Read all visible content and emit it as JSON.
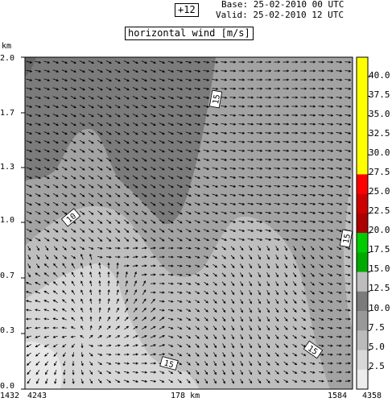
{
  "header": {
    "forecast_step": "+12",
    "base_label": "Base:",
    "base_value": "25-02-2010  00 UTC",
    "valid_label": "Valid:",
    "valid_value": "25-02-2010  12 UTC"
  },
  "chart_data": {
    "type": "heatmap",
    "title": "horizontal wind [m/s]",
    "ylabel": "km",
    "ylim": [
      0.0,
      2.0
    ],
    "yticks": [
      "2.0",
      "1.7",
      "1.3",
      "1.0",
      "0.7",
      "0.3",
      "0.0"
    ],
    "bottom_labels": [
      "1432",
      "4243",
      "178 km",
      "1584",
      "4358"
    ],
    "colorbar": {
      "levels": [
        "40.0",
        "37.5",
        "35.0",
        "32.5",
        "30.0",
        "27.5",
        "25.0",
        "22.5",
        "20.0",
        "17.5",
        "15.0",
        "12.5",
        "10.0",
        "7.5",
        "5.0",
        "2.5"
      ],
      "colors": [
        "#ffff00",
        "#ffff00",
        "#ffff00",
        "#ffff00",
        "#ffff00",
        "#ffff00",
        "#ff0000",
        "#cc0000",
        "#aa0000",
        "#00cc00",
        "#00aa00",
        "#bdbdbd",
        "#7b7b7b",
        "#999999",
        "#bbbbbb",
        "#d8d8d8",
        "#ececec"
      ]
    },
    "contour_labels": [
      "15",
      "10",
      "15",
      "15",
      "15"
    ]
  }
}
